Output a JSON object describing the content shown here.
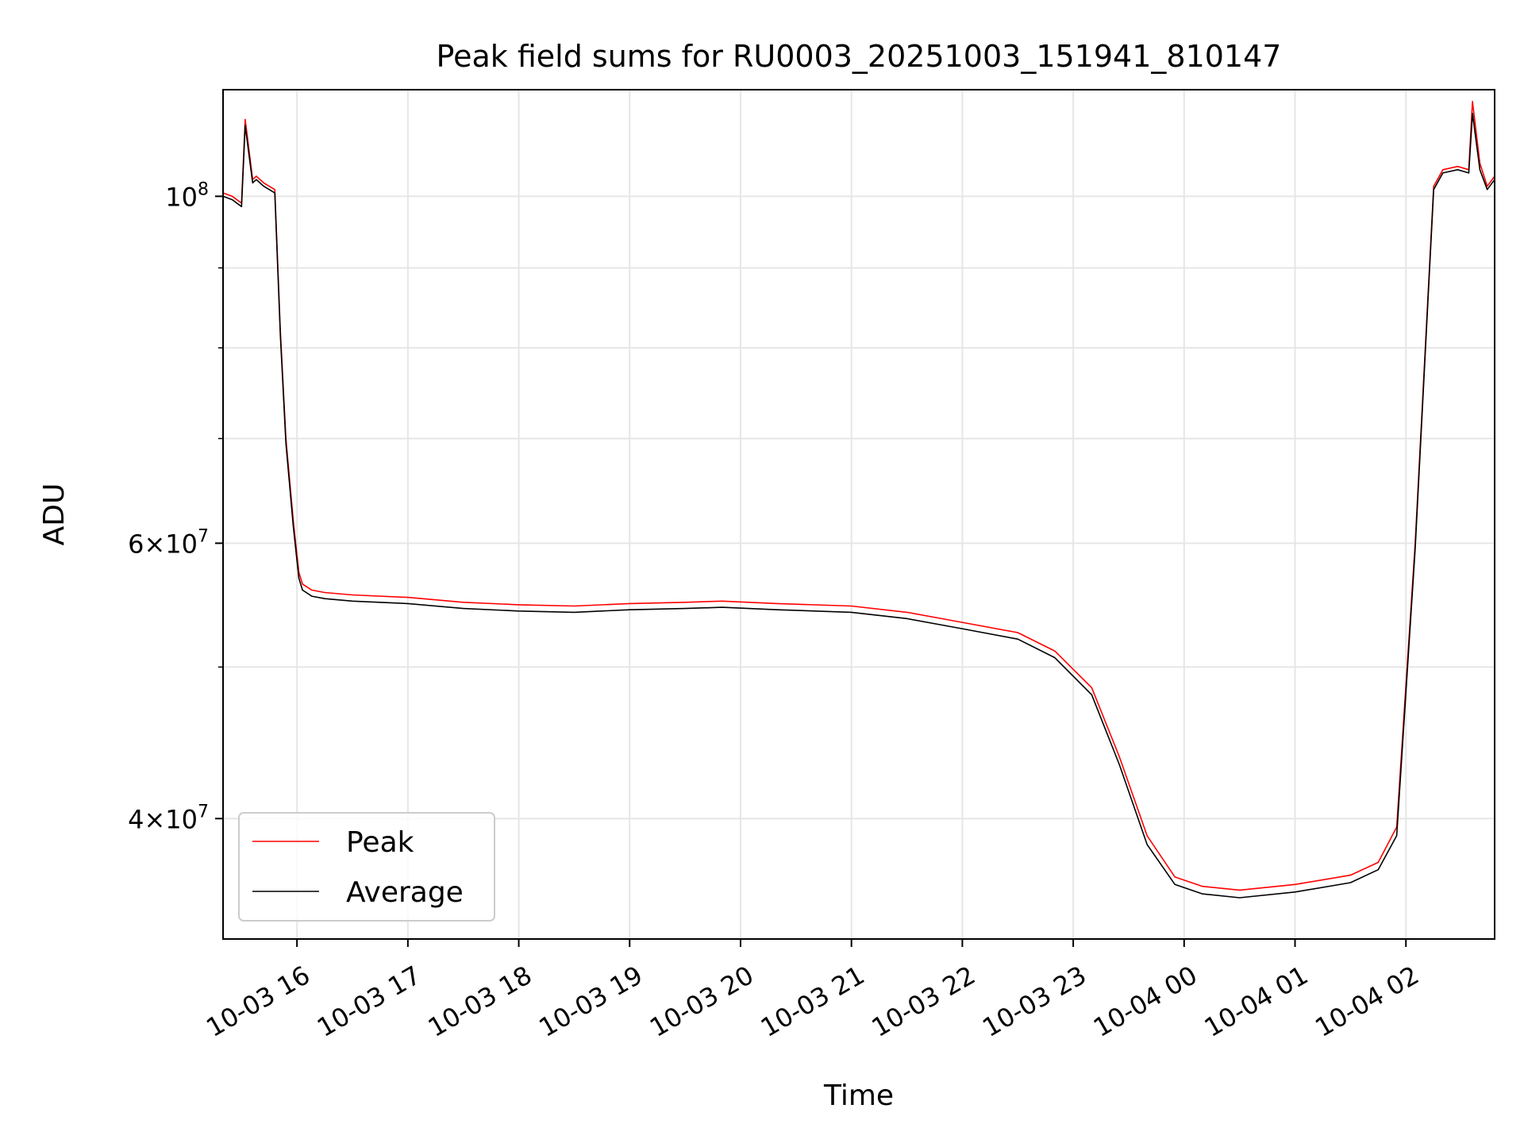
{
  "chart_data": {
    "type": "line",
    "title": "Peak field sums for RU0003_20251003_151941_810147",
    "xlabel": "Time",
    "ylabel": "ADU",
    "y_scale": "log",
    "ylim": [
      33500000,
      117000000
    ],
    "xlim": [
      "2025-10-03 15:20",
      "2025-10-04 02:48"
    ],
    "grid": true,
    "legend_position": "lower-left",
    "x_ticks": [
      {
        "t": "2025-10-03 16:00",
        "label": "10-03 16"
      },
      {
        "t": "2025-10-03 17:00",
        "label": "10-03 17"
      },
      {
        "t": "2025-10-03 18:00",
        "label": "10-03 18"
      },
      {
        "t": "2025-10-03 19:00",
        "label": "10-03 19"
      },
      {
        "t": "2025-10-03 20:00",
        "label": "10-03 20"
      },
      {
        "t": "2025-10-03 21:00",
        "label": "10-03 21"
      },
      {
        "t": "2025-10-03 22:00",
        "label": "10-03 22"
      },
      {
        "t": "2025-10-03 23:00",
        "label": "10-03 23"
      },
      {
        "t": "2025-10-04 00:00",
        "label": "10-04 00"
      },
      {
        "t": "2025-10-04 01:00",
        "label": "10-04 01"
      },
      {
        "t": "2025-10-04 02:00",
        "label": "10-04 02"
      }
    ],
    "y_major_ticks": [
      {
        "value": 40000000,
        "mantissa": "4",
        "exp": "7"
      },
      {
        "value": 60000000,
        "mantissa": "6",
        "exp": "7"
      },
      {
        "value": 100000000,
        "mantissa": "",
        "exp": "8"
      }
    ],
    "y_minor_ticks": [
      50000000,
      70000000,
      80000000,
      90000000
    ],
    "series": [
      {
        "name": "Peak",
        "color": "#ff0000",
        "x": [
          "2025-10-03 15:20",
          "2025-10-03 15:25",
          "2025-10-03 15:30",
          "2025-10-03 15:32",
          "2025-10-03 15:36",
          "2025-10-03 15:38",
          "2025-10-03 15:42",
          "2025-10-03 15:48",
          "2025-10-03 15:51",
          "2025-10-03 15:54",
          "2025-10-03 15:58",
          "2025-10-03 16:01",
          "2025-10-03 16:03",
          "2025-10-03 16:08",
          "2025-10-03 16:15",
          "2025-10-03 16:30",
          "2025-10-03 17:00",
          "2025-10-03 17:30",
          "2025-10-03 18:00",
          "2025-10-03 18:30",
          "2025-10-03 19:00",
          "2025-10-03 19:30",
          "2025-10-03 19:50",
          "2025-10-03 20:20",
          "2025-10-03 21:00",
          "2025-10-03 21:30",
          "2025-10-03 22:00",
          "2025-10-03 22:30",
          "2025-10-03 22:50",
          "2025-10-03 23:10",
          "2025-10-03 23:25",
          "2025-10-03 23:40",
          "2025-10-03 23:55",
          "2025-10-04 00:10",
          "2025-10-04 00:30",
          "2025-10-04 01:00",
          "2025-10-04 01:30",
          "2025-10-04 01:45",
          "2025-10-04 01:55",
          "2025-10-04 02:05",
          "2025-10-04 02:15",
          "2025-10-04 02:20",
          "2025-10-04 02:28",
          "2025-10-04 02:34",
          "2025-10-04 02:36",
          "2025-10-04 02:40",
          "2025-10-04 02:44",
          "2025-10-04 02:48"
        ],
        "y": [
          100500000,
          100000000,
          99000000,
          112000000,
          102500000,
          103000000,
          102000000,
          101000000,
          82000000,
          70000000,
          62000000,
          57500000,
          56500000,
          56000000,
          55800000,
          55600000,
          55400000,
          55000000,
          54800000,
          54700000,
          54900000,
          55000000,
          55100000,
          54900000,
          54700000,
          54200000,
          53400000,
          52600000,
          51200000,
          48500000,
          43800000,
          39000000,
          36700000,
          36200000,
          36000000,
          36300000,
          36800000,
          37500000,
          39500000,
          60000000,
          101500000,
          104000000,
          104500000,
          104000000,
          115000000,
          105000000,
          101500000,
          103000000
        ]
      },
      {
        "name": "Average",
        "color": "#000000",
        "x": [
          "2025-10-03 15:20",
          "2025-10-03 15:25",
          "2025-10-03 15:30",
          "2025-10-03 15:32",
          "2025-10-03 15:36",
          "2025-10-03 15:38",
          "2025-10-03 15:42",
          "2025-10-03 15:48",
          "2025-10-03 15:51",
          "2025-10-03 15:54",
          "2025-10-03 15:58",
          "2025-10-03 16:01",
          "2025-10-03 16:03",
          "2025-10-03 16:08",
          "2025-10-03 16:15",
          "2025-10-03 16:30",
          "2025-10-03 17:00",
          "2025-10-03 17:30",
          "2025-10-03 18:00",
          "2025-10-03 18:30",
          "2025-10-03 19:00",
          "2025-10-03 19:30",
          "2025-10-03 19:50",
          "2025-10-03 20:20",
          "2025-10-03 21:00",
          "2025-10-03 21:30",
          "2025-10-03 22:00",
          "2025-10-03 22:30",
          "2025-10-03 22:50",
          "2025-10-03 23:10",
          "2025-10-03 23:25",
          "2025-10-03 23:40",
          "2025-10-03 23:55",
          "2025-10-04 00:10",
          "2025-10-04 00:30",
          "2025-10-04 01:00",
          "2025-10-04 01:30",
          "2025-10-04 01:45",
          "2025-10-04 01:55",
          "2025-10-04 02:05",
          "2025-10-04 02:15",
          "2025-10-04 02:20",
          "2025-10-04 02:28",
          "2025-10-04 02:34",
          "2025-10-04 02:36",
          "2025-10-04 02:40",
          "2025-10-04 02:44",
          "2025-10-04 02:48"
        ],
        "y": [
          100000000,
          99500000,
          98500000,
          111000000,
          102000000,
          102500000,
          101500000,
          100500000,
          81500000,
          69500000,
          61500000,
          57000000,
          56000000,
          55500000,
          55300000,
          55100000,
          54900000,
          54500000,
          54300000,
          54200000,
          54400000,
          54500000,
          54600000,
          54400000,
          54200000,
          53700000,
          52900000,
          52100000,
          50700000,
          48000000,
          43300000,
          38500000,
          36300000,
          35800000,
          35600000,
          35900000,
          36400000,
          37100000,
          39000000,
          59500000,
          101000000,
          103500000,
          104000000,
          103500000,
          113000000,
          104000000,
          101000000,
          102500000
        ]
      }
    ]
  }
}
